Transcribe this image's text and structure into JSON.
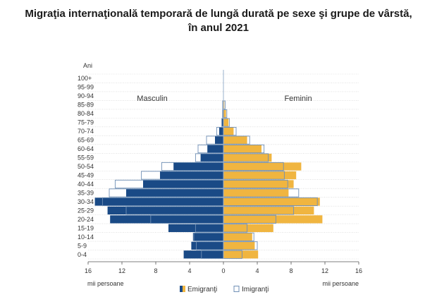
{
  "title_line1": "Migraţia internaţională temporară de lungă durată pe sexe şi grupe de vârstă,",
  "title_line2": "în anul 2021",
  "chart_data": {
    "type": "bar",
    "orientation": "horizontal-pyramid",
    "y_axis_title": "Ani",
    "left_label": "Masculin",
    "right_label": "Feminin",
    "xlabel_left": "mii persoane",
    "xlabel_right": "mii persoane",
    "x_ticks": [
      "16",
      "12",
      "8",
      "4",
      "0",
      "4",
      "8",
      "12",
      "16"
    ],
    "xlim": [
      -16,
      16
    ],
    "categories": [
      "100+",
      "95-99",
      "90-94",
      "85-89",
      "80-84",
      "75-79",
      "70-74",
      "65-69",
      "60-64",
      "55-59",
      "50-54",
      "45-49",
      "40-44",
      "35-39",
      "30-34",
      "25-29",
      "20-24",
      "15-19",
      "10-14",
      "5-9",
      "0-4"
    ],
    "series": [
      {
        "name": "Emigranţi",
        "male": [
          0.0,
          0.0,
          0.0,
          0.0,
          0.1,
          0.2,
          0.5,
          1.0,
          1.9,
          2.7,
          5.9,
          7.5,
          9.5,
          11.5,
          15.2,
          13.7,
          13.4,
          6.5,
          3.6,
          3.8,
          4.7
        ],
        "female": [
          0.0,
          0.0,
          0.0,
          0.1,
          0.3,
          0.6,
          1.2,
          2.8,
          4.5,
          5.7,
          9.2,
          8.6,
          8.3,
          7.7,
          11.4,
          10.7,
          11.7,
          5.9,
          3.4,
          3.7,
          4.1
        ],
        "colors": {
          "male": "#1a4a86",
          "female": "#f0b540"
        }
      },
      {
        "name": "Imigranţi",
        "male": [
          0.0,
          0.0,
          0.0,
          0.1,
          0.1,
          0.2,
          0.8,
          2.0,
          3.0,
          3.3,
          7.3,
          9.7,
          12.8,
          13.5,
          14.3,
          11.5,
          8.6,
          3.3,
          3.5,
          3.2,
          2.6
        ],
        "female": [
          0.0,
          0.0,
          0.0,
          0.2,
          0.4,
          0.7,
          1.5,
          3.1,
          4.8,
          5.3,
          7.1,
          7.2,
          7.6,
          8.9,
          11.1,
          8.3,
          6.2,
          2.8,
          3.6,
          4.0,
          2.2
        ],
        "colors": {
          "stroke": "#6f8fb5"
        }
      }
    ],
    "grid": true,
    "legend_position": "bottom-center"
  }
}
